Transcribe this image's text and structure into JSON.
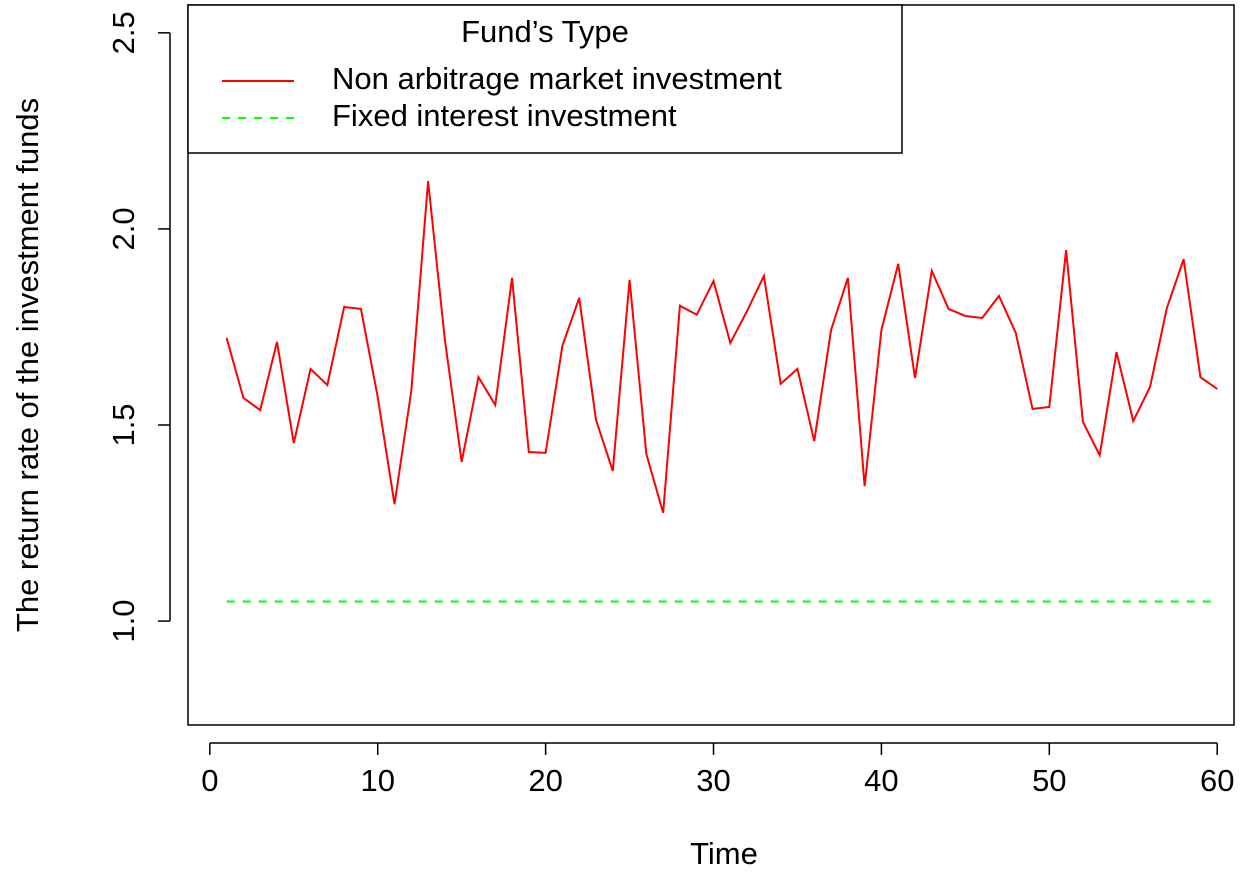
{
  "chart_data": {
    "type": "line",
    "xlabel": "Time",
    "ylabel": "The return rate of the investment funds",
    "x": [
      1,
      2,
      3,
      4,
      5,
      6,
      7,
      8,
      9,
      10,
      11,
      12,
      13,
      14,
      15,
      16,
      17,
      18,
      19,
      20,
      21,
      22,
      23,
      24,
      25,
      26,
      27,
      28,
      29,
      30,
      31,
      32,
      33,
      34,
      35,
      36,
      37,
      38,
      39,
      40,
      41,
      42,
      43,
      44,
      45,
      46,
      47,
      48,
      49,
      50,
      51,
      52,
      53,
      54,
      55,
      56,
      57,
      58,
      59,
      60
    ],
    "series": [
      {
        "name": "Non arbitrage market investment",
        "color": "#ff0000",
        "dash": false,
        "values": [
          1.722,
          1.569,
          1.538,
          1.712,
          1.454,
          1.643,
          1.602,
          1.801,
          1.796,
          1.571,
          1.298,
          1.587,
          2.122,
          1.717,
          1.406,
          1.622,
          1.551,
          1.875,
          1.431,
          1.429,
          1.702,
          1.824,
          1.513,
          1.383,
          1.87,
          1.426,
          1.276,
          1.804,
          1.781,
          1.867,
          1.709,
          1.791,
          1.88,
          1.605,
          1.643,
          1.459,
          1.742,
          1.875,
          1.344,
          1.742,
          1.911,
          1.62,
          1.893,
          1.796,
          1.778,
          1.773,
          1.829,
          1.735,
          1.541,
          1.546,
          1.946,
          1.508,
          1.423,
          1.686,
          1.51,
          1.597,
          1.798,
          1.923,
          1.622,
          1.592
        ]
      },
      {
        "name": "Fixed interest investment",
        "color": "#00ff00",
        "dash": true,
        "values": [
          1.05,
          1.05,
          1.05,
          1.05,
          1.05,
          1.05,
          1.05,
          1.05,
          1.05,
          1.05,
          1.05,
          1.05,
          1.05,
          1.05,
          1.05,
          1.05,
          1.05,
          1.05,
          1.05,
          1.05,
          1.05,
          1.05,
          1.05,
          1.05,
          1.05,
          1.05,
          1.05,
          1.05,
          1.05,
          1.05,
          1.05,
          1.05,
          1.05,
          1.05,
          1.05,
          1.05,
          1.05,
          1.05,
          1.05,
          1.05,
          1.05,
          1.05,
          1.05,
          1.05,
          1.05,
          1.05,
          1.05,
          1.05,
          1.05,
          1.05,
          1.05,
          1.05,
          1.05,
          1.05,
          1.05,
          1.05,
          1.05,
          1.05,
          1.05,
          1.05
        ]
      }
    ],
    "legend_title": "Fund’s Type",
    "legend_position": "upper left",
    "xlim": [
      -1.3,
      61.0
    ],
    "xticks": [
      0,
      10,
      20,
      30,
      40,
      50,
      60
    ],
    "ylim": [
      0.735,
      2.571
    ],
    "yticks": [
      {
        "value": 1.0,
        "label": "1.0"
      },
      1.5,
      {
        "value": 2.0,
        "label": "2.0"
      },
      2.5
    ]
  }
}
